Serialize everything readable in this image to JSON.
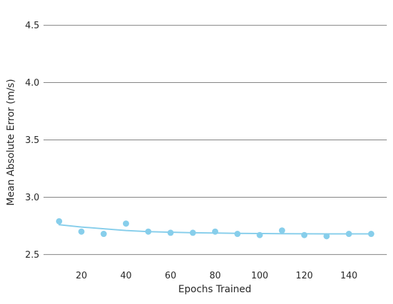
{
  "chart_data": {
    "type": "scatter",
    "title": "",
    "xlabel": "Epochs Trained",
    "ylabel": "Mean Absolute Error (m/s)",
    "xlim": [
      3,
      157
    ],
    "ylim": [
      2.4,
      4.6
    ],
    "xticks": [
      20,
      40,
      60,
      80,
      100,
      120,
      140
    ],
    "yticks": [
      2.5,
      3.0,
      3.5,
      4.0,
      4.5
    ],
    "ytick_labels": [
      "2.5",
      "3.0",
      "3.5",
      "4.0",
      "4.5"
    ],
    "grid": "horizontal",
    "legend": "none",
    "series": [
      {
        "kind": "scatter",
        "x": [
          10,
          20,
          30,
          40,
          50,
          60,
          70,
          80,
          90,
          100,
          110,
          120,
          130,
          140,
          150
        ],
        "y": [
          2.79,
          2.7,
          2.68,
          2.77,
          2.7,
          2.69,
          2.69,
          2.7,
          2.68,
          2.67,
          2.71,
          2.67,
          2.66,
          2.68,
          2.68
        ],
        "color": "#87ceeb"
      },
      {
        "kind": "line",
        "x": [
          10,
          20,
          30,
          40,
          50,
          60,
          70,
          80,
          90,
          100,
          110,
          120,
          130,
          140,
          150
        ],
        "y": [
          2.76,
          2.74,
          2.725,
          2.71,
          2.7,
          2.695,
          2.69,
          2.688,
          2.685,
          2.683,
          2.682,
          2.681,
          2.68,
          2.68,
          2.68
        ],
        "color": "#87ceeb"
      }
    ]
  }
}
